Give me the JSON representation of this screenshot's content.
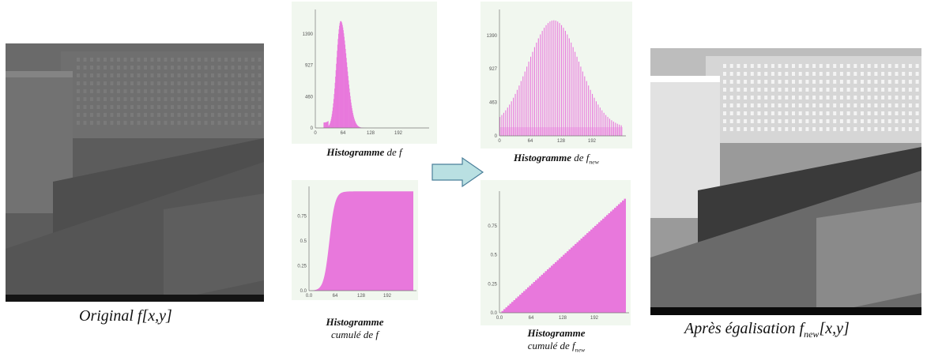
{
  "colors": {
    "histogram_fill": "#e878dc",
    "arrow_fill": "#b9e0e2",
    "arrow_stroke": "#4a7f9a",
    "panel_bg": "#f1f7ef"
  },
  "captions": {
    "original": "Original f[x,y]",
    "after_prefix": "Après égalisation f",
    "after_sub": "new",
    "after_suffix": "[x,y]",
    "hist_f_bold": "Histogramme",
    "hist_f_rest": " de f",
    "hist_fnew_bold": "Histogramme",
    "hist_fnew_rest": " de f",
    "hist_fnew_sub": "new",
    "cum_f_line1": "Histogramme",
    "cum_f_line2": "cumulé de f",
    "cum_fnew_line1": "Histogramme",
    "cum_fnew_line2": "cumulé de f",
    "cum_fnew_sub": "new"
  },
  "chart_data": [
    {
      "id": "hist_f",
      "type": "bar",
      "xlim": [
        0,
        256
      ],
      "ylim": [
        0,
        1750
      ],
      "x_ticks": [
        "0",
        "64",
        "128",
        "192"
      ],
      "y_ticks": [
        "0",
        "460",
        "927",
        "1390"
      ],
      "y_tick_values": [
        0,
        460,
        927,
        1390
      ]
    },
    {
      "id": "hist_fnew",
      "type": "bar",
      "xlim": [
        0,
        256
      ],
      "ylim": [
        0,
        1750
      ],
      "x_ticks": [
        "0",
        "64",
        "128",
        "192"
      ],
      "y_ticks": [
        "0",
        "463",
        "927",
        "1390"
      ],
      "y_tick_values": [
        0,
        463,
        927,
        1390
      ]
    },
    {
      "id": "cum_f",
      "type": "area",
      "xlim": [
        0,
        256
      ],
      "ylim": [
        0,
        1.05
      ],
      "x_ticks": [
        "0.0",
        "64",
        "128",
        "192"
      ],
      "y_ticks": [
        "0.0",
        "0.25",
        "0.5",
        "0.75"
      ],
      "y_tick_values": [
        0,
        0.25,
        0.5,
        0.75
      ]
    },
    {
      "id": "cum_fnew",
      "type": "area",
      "xlim": [
        0,
        256
      ],
      "ylim": [
        0,
        1.05
      ],
      "x_ticks": [
        "0.0",
        "64",
        "128",
        "192"
      ],
      "y_ticks": [
        "0.0",
        "0.25",
        "0.5",
        "0.75"
      ],
      "y_tick_values": [
        0,
        0.25,
        0.5,
        0.75
      ]
    }
  ]
}
